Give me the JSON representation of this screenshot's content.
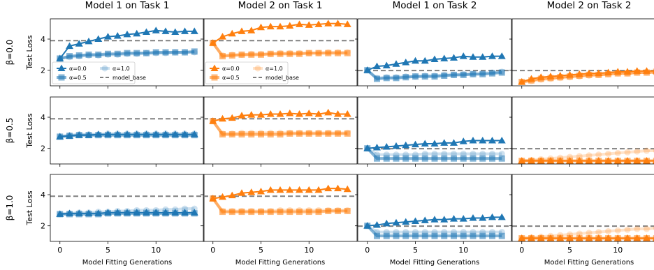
{
  "chart_data": {
    "type": "line",
    "grid": false,
    "x": [
      0,
      1,
      2,
      3,
      4,
      5,
      6,
      7,
      8,
      9,
      10,
      11,
      12,
      13,
      14
    ],
    "xlabel": "Model Fitting Generations",
    "ylabel": "Test Loss",
    "xticks": [
      0,
      5,
      10
    ],
    "yticks": [
      2,
      4
    ],
    "xlim": [
      -1,
      15
    ],
    "ylim": [
      1.0,
      5.3
    ],
    "colors": {
      "model1": "#1f77b4",
      "model2": "#ff7f0e",
      "baseline": "#808080"
    },
    "columns": [
      "Model 1 on Task 1",
      "Model 2 on Task 1",
      "Model 1 on Task 2",
      "Model 2 on Task 2"
    ],
    "rows": [
      "β=0.0",
      "β=0.5",
      "β=1.0"
    ],
    "legend_placement": "lower-left",
    "legend": {
      "entries": [
        "α=0.0",
        "α=0.5",
        "α=1.0",
        "model_base"
      ]
    },
    "panels": [
      [
        {
          "baseline": 3.9,
          "series": [
            {
              "name": "α=0.0",
              "marker": "triangle",
              "values": [
                2.75,
                3.55,
                3.7,
                3.85,
                4.0,
                4.15,
                4.2,
                4.3,
                4.35,
                4.45,
                4.55,
                4.5,
                4.45,
                4.5,
                4.5
              ]
            },
            {
              "name": "α=0.5",
              "marker": "square",
              "values": [
                2.75,
                2.9,
                2.95,
                3.0,
                3.0,
                3.05,
                3.05,
                3.1,
                3.1,
                3.1,
                3.15,
                3.15,
                3.15,
                3.15,
                3.2
              ]
            },
            {
              "name": "α=1.0",
              "marker": "circle",
              "values": [
                2.75,
                2.85,
                2.9,
                2.95,
                2.95,
                3.0,
                3.0,
                3.05,
                3.05,
                3.1,
                3.1,
                3.1,
                3.15,
                3.15,
                3.15
              ]
            }
          ]
        },
        {
          "baseline": 3.9,
          "series": [
            {
              "name": "α=0.0",
              "marker": "triangle",
              "values": [
                3.75,
                4.15,
                4.35,
                4.5,
                4.55,
                4.75,
                4.8,
                4.8,
                4.85,
                4.95,
                4.9,
                4.95,
                5.0,
                5.0,
                4.95
              ]
            },
            {
              "name": "α=0.5",
              "marker": "square",
              "values": [
                3.75,
                2.9,
                2.95,
                3.0,
                3.0,
                3.0,
                3.05,
                3.05,
                3.05,
                3.05,
                3.1,
                3.1,
                3.1,
                3.1,
                3.1
              ]
            },
            {
              "name": "α=1.0",
              "marker": "circle",
              "values": [
                3.75,
                2.95,
                3.0,
                3.0,
                3.05,
                3.05,
                3.05,
                3.1,
                3.1,
                3.1,
                3.1,
                3.1,
                3.15,
                3.15,
                3.15
              ]
            }
          ]
        },
        {
          "baseline": 1.98,
          "series": [
            {
              "name": "α=0.0",
              "marker": "triangle",
              "values": [
                2.0,
                2.25,
                2.3,
                2.4,
                2.5,
                2.6,
                2.6,
                2.7,
                2.75,
                2.8,
                2.9,
                2.85,
                2.85,
                2.9,
                2.9
              ]
            },
            {
              "name": "α=0.5",
              "marker": "square",
              "values": [
                2.0,
                1.45,
                1.5,
                1.5,
                1.55,
                1.6,
                1.6,
                1.6,
                1.65,
                1.7,
                1.7,
                1.75,
                1.75,
                1.8,
                1.85
              ]
            },
            {
              "name": "α=1.0",
              "marker": "circle",
              "values": [
                2.0,
                1.5,
                1.55,
                1.55,
                1.6,
                1.6,
                1.65,
                1.65,
                1.7,
                1.7,
                1.75,
                1.75,
                1.8,
                1.85,
                1.9
              ]
            }
          ]
        },
        {
          "baseline": 1.98,
          "series": [
            {
              "name": "α=0.0",
              "marker": "triangle",
              "values": [
                1.25,
                1.45,
                1.55,
                1.6,
                1.65,
                1.7,
                1.75,
                1.8,
                1.8,
                1.85,
                1.9,
                1.9,
                1.95,
                1.95,
                1.95
              ]
            },
            {
              "name": "α=0.5",
              "marker": "square",
              "values": [
                1.25,
                1.35,
                1.45,
                1.5,
                1.55,
                1.6,
                1.65,
                1.7,
                1.7,
                1.75,
                1.8,
                1.8,
                1.85,
                1.85,
                1.9
              ]
            },
            {
              "name": "α=1.0",
              "marker": "circle",
              "values": [
                1.25,
                1.3,
                1.4,
                1.45,
                1.5,
                1.55,
                1.6,
                1.65,
                1.7,
                1.75,
                1.8,
                1.8,
                1.85,
                1.85,
                1.85
              ]
            }
          ]
        }
      ],
      [
        {
          "baseline": 3.9,
          "series": [
            {
              "name": "α=0.0",
              "marker": "triangle",
              "values": [
                2.75,
                2.8,
                2.85,
                2.85,
                2.9,
                2.9,
                2.9,
                2.9,
                2.9,
                2.9,
                2.9,
                2.9,
                2.9,
                2.9,
                2.9
              ]
            },
            {
              "name": "α=0.5",
              "marker": "square",
              "values": [
                2.75,
                2.8,
                2.85,
                2.85,
                2.85,
                2.85,
                2.85,
                2.85,
                2.85,
                2.85,
                2.85,
                2.85,
                2.85,
                2.85,
                2.85
              ]
            },
            {
              "name": "α=1.0",
              "marker": "circle",
              "values": [
                2.75,
                2.85,
                2.9,
                2.9,
                2.9,
                2.95,
                2.95,
                2.95,
                2.95,
                2.95,
                2.95,
                2.95,
                2.95,
                2.95,
                2.95
              ]
            }
          ]
        },
        {
          "baseline": 3.9,
          "series": [
            {
              "name": "α=0.0",
              "marker": "triangle",
              "values": [
                3.75,
                3.9,
                3.95,
                4.1,
                4.15,
                4.15,
                4.2,
                4.2,
                4.25,
                4.2,
                4.25,
                4.2,
                4.3,
                4.2,
                4.2
              ]
            },
            {
              "name": "α=0.5",
              "marker": "square",
              "values": [
                3.75,
                2.9,
                2.9,
                2.9,
                2.9,
                2.9,
                2.9,
                2.9,
                2.95,
                2.95,
                2.95,
                2.95,
                2.95,
                2.95,
                2.95
              ]
            },
            {
              "name": "α=1.0",
              "marker": "circle",
              "values": [
                3.75,
                2.95,
                2.95,
                3.0,
                3.0,
                3.0,
                3.0,
                3.0,
                3.0,
                3.0,
                3.0,
                3.0,
                3.0,
                3.0,
                3.0
              ]
            }
          ]
        },
        {
          "baseline": 1.98,
          "series": [
            {
              "name": "α=0.0",
              "marker": "triangle",
              "values": [
                2.0,
                2.05,
                2.1,
                2.15,
                2.2,
                2.25,
                2.3,
                2.3,
                2.35,
                2.35,
                2.45,
                2.5,
                2.5,
                2.5,
                2.5
              ]
            },
            {
              "name": "α=0.5",
              "marker": "square",
              "values": [
                2.0,
                1.35,
                1.35,
                1.35,
                1.35,
                1.35,
                1.35,
                1.35,
                1.35,
                1.35,
                1.35,
                1.35,
                1.35,
                1.35,
                1.35
              ]
            },
            {
              "name": "α=1.0",
              "marker": "circle",
              "values": [
                2.0,
                1.6,
                1.6,
                1.6,
                1.6,
                1.6,
                1.65,
                1.65,
                1.65,
                1.65,
                1.65,
                1.65,
                1.65,
                1.65,
                1.65
              ]
            }
          ]
        },
        {
          "baseline": 1.98,
          "series": [
            {
              "name": "α=0.0",
              "marker": "triangle",
              "values": [
                1.2,
                1.2,
                1.2,
                1.2,
                1.2,
                1.2,
                1.2,
                1.2,
                1.2,
                1.2,
                1.2,
                1.2,
                1.2,
                1.2,
                1.2
              ]
            },
            {
              "name": "α=0.5",
              "marker": "square",
              "values": [
                1.2,
                1.2,
                1.2,
                1.2,
                1.2,
                1.2,
                1.2,
                1.2,
                1.2,
                1.2,
                1.2,
                1.2,
                1.2,
                1.2,
                1.2
              ]
            },
            {
              "name": "α=1.0",
              "marker": "circle",
              "values": [
                1.2,
                1.25,
                1.3,
                1.35,
                1.4,
                1.45,
                1.5,
                1.55,
                1.6,
                1.65,
                1.7,
                1.75,
                1.8,
                1.85,
                1.85
              ]
            }
          ]
        }
      ],
      [
        {
          "baseline": 3.9,
          "series": [
            {
              "name": "α=0.0",
              "marker": "triangle",
              "values": [
                2.75,
                2.8,
                2.8,
                2.8,
                2.8,
                2.85,
                2.85,
                2.85,
                2.85,
                2.85,
                2.85,
                2.85,
                2.85,
                2.85,
                2.85
              ]
            },
            {
              "name": "α=0.5",
              "marker": "square",
              "values": [
                2.75,
                2.75,
                2.75,
                2.75,
                2.75,
                2.8,
                2.8,
                2.8,
                2.8,
                2.8,
                2.8,
                2.8,
                2.8,
                2.8,
                2.8
              ]
            },
            {
              "name": "α=1.0",
              "marker": "circle",
              "values": [
                2.75,
                2.8,
                2.85,
                2.85,
                2.9,
                2.9,
                2.95,
                2.95,
                3.0,
                3.0,
                3.0,
                3.05,
                3.05,
                3.1,
                3.1
              ]
            }
          ]
        },
        {
          "baseline": 3.9,
          "series": [
            {
              "name": "α=0.0",
              "marker": "triangle",
              "values": [
                3.75,
                3.85,
                3.95,
                4.1,
                4.15,
                4.2,
                4.3,
                4.3,
                4.3,
                4.3,
                4.3,
                4.3,
                4.4,
                4.4,
                4.35
              ]
            },
            {
              "name": "α=0.5",
              "marker": "square",
              "values": [
                3.75,
                2.9,
                2.9,
                2.9,
                2.9,
                2.9,
                2.9,
                2.9,
                2.9,
                2.9,
                2.9,
                2.9,
                2.95,
                2.95,
                2.95
              ]
            },
            {
              "name": "α=1.0",
              "marker": "circle",
              "values": [
                3.75,
                2.95,
                2.95,
                2.95,
                2.95,
                2.95,
                2.95,
                3.0,
                3.0,
                3.0,
                3.0,
                3.0,
                3.0,
                3.0,
                3.0
              ]
            }
          ]
        },
        {
          "baseline": 1.98,
          "series": [
            {
              "name": "α=0.0",
              "marker": "triangle",
              "values": [
                2.0,
                2.05,
                2.15,
                2.2,
                2.25,
                2.3,
                2.35,
                2.4,
                2.4,
                2.45,
                2.45,
                2.5,
                2.5,
                2.55,
                2.55
              ]
            },
            {
              "name": "α=0.5",
              "marker": "square",
              "values": [
                2.0,
                1.35,
                1.35,
                1.35,
                1.35,
                1.35,
                1.35,
                1.35,
                1.35,
                1.35,
                1.35,
                1.35,
                1.35,
                1.35,
                1.35
              ]
            },
            {
              "name": "α=1.0",
              "marker": "circle",
              "values": [
                2.0,
                1.6,
                1.6,
                1.6,
                1.6,
                1.6,
                1.6,
                1.6,
                1.6,
                1.6,
                1.6,
                1.6,
                1.6,
                1.6,
                1.6
              ]
            }
          ]
        },
        {
          "baseline": 1.98,
          "series": [
            {
              "name": "α=0.0",
              "marker": "triangle",
              "values": [
                1.2,
                1.2,
                1.2,
                1.2,
                1.2,
                1.2,
                1.2,
                1.2,
                1.2,
                1.2,
                1.2,
                1.2,
                1.2,
                1.2,
                1.2
              ]
            },
            {
              "name": "α=0.5",
              "marker": "square",
              "values": [
                1.2,
                1.2,
                1.2,
                1.2,
                1.2,
                1.2,
                1.2,
                1.2,
                1.2,
                1.2,
                1.2,
                1.2,
                1.2,
                1.2,
                1.2
              ]
            },
            {
              "name": "α=1.0",
              "marker": "circle",
              "values": [
                1.2,
                1.25,
                1.3,
                1.35,
                1.4,
                1.45,
                1.5,
                1.55,
                1.6,
                1.65,
                1.7,
                1.75,
                1.8,
                1.8,
                1.85
              ]
            }
          ]
        }
      ]
    ]
  }
}
